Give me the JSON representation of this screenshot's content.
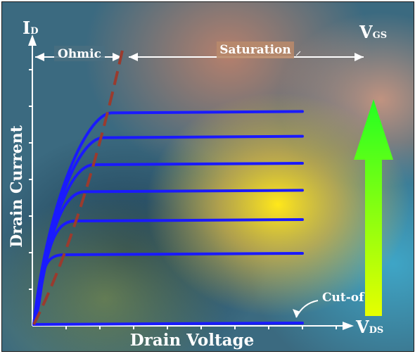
{
  "axes": {
    "y_symbol_main": "I",
    "y_symbol_sub": "D",
    "x_symbol_main": "V",
    "x_symbol_sub": "DS",
    "y_label": "Drain Current",
    "x_label": "Drain Voltage"
  },
  "regions": {
    "ohmic": "Ohmic",
    "saturation": "Saturation"
  },
  "gate": {
    "main": "V",
    "sub": "GS"
  },
  "cutoff_label": "Cut-of",
  "curve_levels": [
    0.93,
    0.82,
    0.7,
    0.58,
    0.45,
    0.3,
    0.0
  ],
  "colors": {
    "curve": "#1a1aff",
    "boundary": "#9a3b2e",
    "arrow_bottom": "#e6ff00",
    "arrow_top": "#22ff22"
  }
}
